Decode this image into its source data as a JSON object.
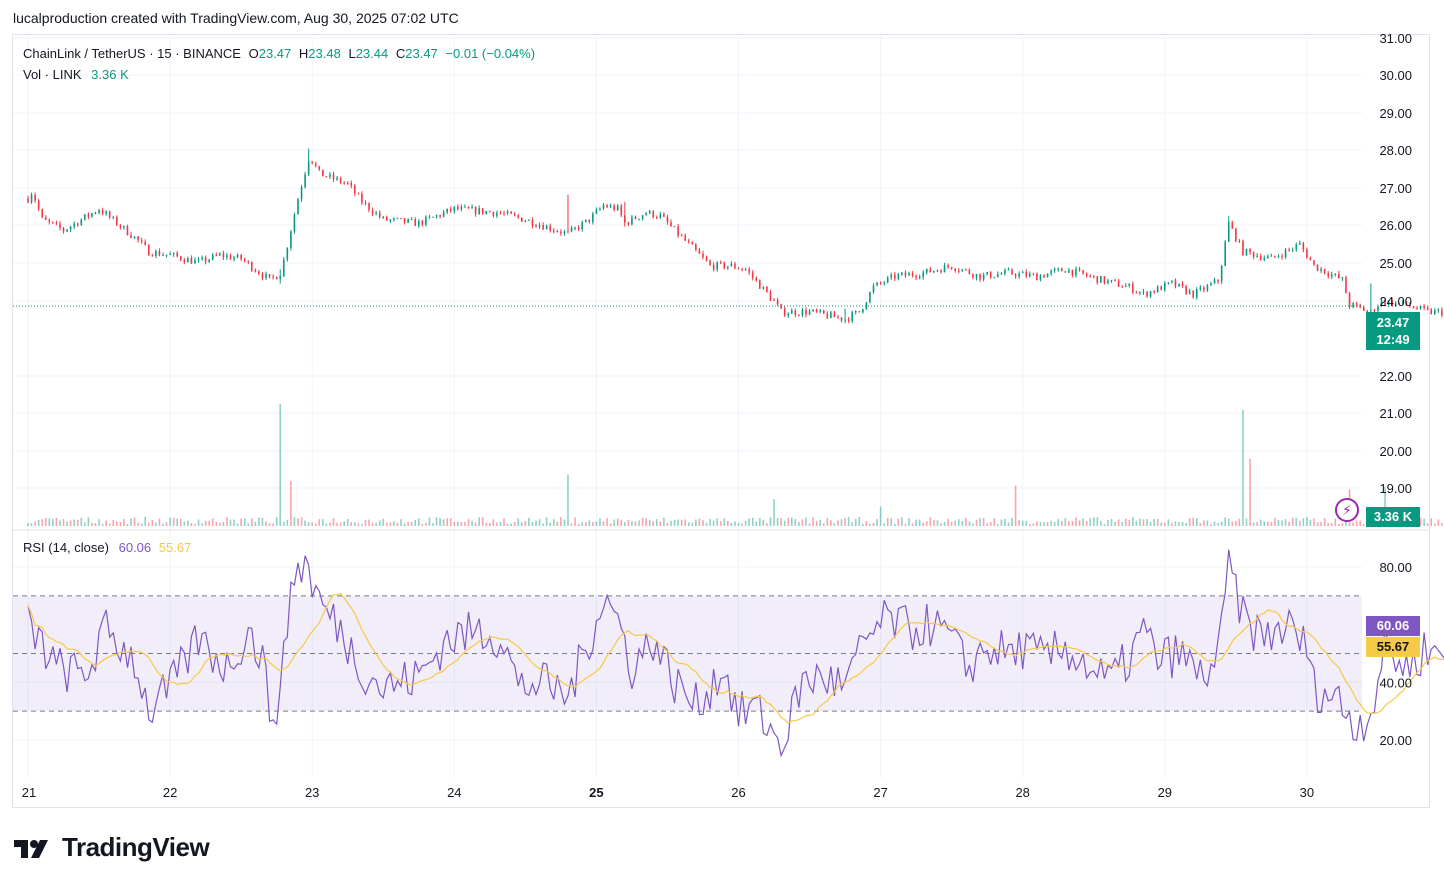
{
  "header": {
    "text": "lucalproduction created with TradingView.com, Aug 30, 2025 07:02 UTC"
  },
  "legend": {
    "symbol": "ChainLink / TetherUS · 15 · BINANCE",
    "o_label": "O",
    "o": "23.47",
    "h_label": "H",
    "h": "23.48",
    "l_label": "L",
    "l": "23.44",
    "c_label": "C",
    "c": "23.47",
    "change": "−0.01 (−0.04%)",
    "vol_label": "Vol · LINK",
    "vol": "3.36 K"
  },
  "rsi_legend": {
    "label": "RSI (14, close)",
    "value": "60.06",
    "ma": "55.67"
  },
  "badges": {
    "price": "23.47",
    "countdown": "12:49",
    "volume": "3.36 K",
    "rsi": "60.06",
    "rsi_ma": "55.67"
  },
  "brand": {
    "name": "TradingView",
    "logo_icon": "tradingview-logo-icon"
  },
  "colors": {
    "up": "#089981",
    "down": "#f23645",
    "rsi": "#7e57c2",
    "rsi_ma": "#f7c948",
    "band": "#7e57c2"
  },
  "chart_data": [
    {
      "type": "candlestick",
      "x_ticks": [
        "21",
        "22",
        "23",
        "24",
        "25",
        "26",
        "27",
        "28",
        "29",
        "30"
      ],
      "x_ticks_bold": [
        "25"
      ],
      "y_ticks": [
        "31.00",
        "30.00",
        "29.00",
        "28.00",
        "27.00",
        "26.00",
        "25.00",
        "24.00",
        "22.00",
        "21.00",
        "20.00",
        "19.00"
      ],
      "y_ticks_values": [
        31,
        30,
        29,
        28,
        27,
        26,
        25,
        24,
        22,
        21,
        20,
        19
      ],
      "ylim": [
        18.4,
        31.1
      ],
      "last_price": 23.47,
      "price_path": [
        [
          0,
          26.5
        ],
        [
          0.03,
          26.7
        ],
        [
          0.1,
          25.9
        ],
        [
          0.25,
          25.6
        ],
        [
          0.5,
          26.2
        ],
        [
          0.75,
          25.4
        ],
        [
          0.85,
          25.0
        ],
        [
          1.0,
          24.9
        ],
        [
          1.2,
          24.7
        ],
        [
          1.35,
          24.9
        ],
        [
          1.5,
          24.8
        ],
        [
          1.7,
          24.2
        ],
        [
          1.78,
          24.4
        ],
        [
          1.9,
          26.5
        ],
        [
          1.98,
          27.7
        ],
        [
          2.05,
          27.2
        ],
        [
          2.25,
          26.9
        ],
        [
          2.35,
          26.4
        ],
        [
          2.5,
          25.9
        ],
        [
          2.75,
          25.8
        ],
        [
          3.0,
          26.2
        ],
        [
          3.3,
          26.1
        ],
        [
          3.5,
          25.9
        ],
        [
          3.8,
          25.5
        ],
        [
          3.95,
          25.9
        ],
        [
          4.05,
          26.3
        ],
        [
          4.15,
          26.2
        ],
        [
          4.2,
          25.8
        ],
        [
          4.35,
          26.1
        ],
        [
          4.45,
          26.0
        ],
        [
          4.55,
          25.6
        ],
        [
          4.65,
          25.2
        ],
        [
          4.8,
          24.6
        ],
        [
          4.95,
          24.6
        ],
        [
          5.05,
          24.5
        ],
        [
          5.25,
          23.6
        ],
        [
          5.3,
          23.3
        ],
        [
          5.5,
          23.3
        ],
        [
          5.75,
          23.1
        ],
        [
          5.85,
          23.3
        ],
        [
          5.95,
          24.0
        ],
        [
          6.1,
          24.3
        ],
        [
          6.3,
          24.4
        ],
        [
          6.5,
          24.6
        ],
        [
          6.7,
          24.3
        ],
        [
          6.9,
          24.4
        ],
        [
          7.1,
          24.3
        ],
        [
          7.3,
          24.5
        ],
        [
          7.55,
          24.2
        ],
        [
          7.75,
          24.0
        ],
        [
          7.85,
          23.8
        ],
        [
          8.05,
          24.1
        ],
        [
          8.2,
          23.8
        ],
        [
          8.3,
          24.0
        ],
        [
          8.38,
          24.2
        ],
        [
          8.45,
          25.8
        ],
        [
          8.55,
          25.0
        ],
        [
          8.75,
          24.8
        ],
        [
          8.95,
          25.2
        ],
        [
          9.05,
          24.6
        ],
        [
          9.25,
          24.2
        ],
        [
          9.3,
          23.5
        ],
        [
          9.45,
          23.3
        ],
        [
          9.52,
          23.6
        ],
        [
          9.7,
          23.5
        ],
        [
          9.85,
          23.3
        ],
        [
          10.0,
          23.3
        ],
        [
          10.1,
          23.2
        ],
        [
          10.2,
          23.1
        ],
        [
          10.3,
          23.4
        ],
        [
          10.35,
          23.47
        ]
      ],
      "spikes": [
        [
          1.77,
          24.1,
          24.5
        ],
        [
          1.98,
          27.9,
          27.4
        ],
        [
          3.8,
          26.6,
          25.8
        ],
        [
          4.2,
          26.4,
          25.7
        ],
        [
          5.75,
          23.0,
          23.4
        ],
        [
          8.45,
          26.0,
          25.3
        ],
        [
          9.45,
          24.1,
          23.5
        ]
      ]
    },
    {
      "type": "bar",
      "name": "Vol · LINK",
      "spikes": [
        [
          1.77,
          1.0
        ],
        [
          1.85,
          0.37
        ],
        [
          3.8,
          0.42
        ],
        [
          5.25,
          0.22
        ],
        [
          6.0,
          0.16
        ],
        [
          6.95,
          0.33
        ],
        [
          8.55,
          0.95
        ],
        [
          8.6,
          0.55
        ],
        [
          9.3,
          0.3
        ],
        [
          9.55,
          0.32
        ]
      ]
    },
    {
      "type": "line",
      "name": "RSI (14, close)",
      "y_ticks": [
        "80.00",
        "40.00",
        "20.00"
      ],
      "y_ticks_values": [
        80,
        40,
        20
      ],
      "ylim": [
        10,
        88
      ],
      "bands": [
        70,
        50,
        30
      ],
      "last": 60.06,
      "last_ma": 55.67,
      "path": [
        [
          0,
          60
        ],
        [
          0.2,
          45
        ],
        [
          0.4,
          42
        ],
        [
          0.55,
          58
        ],
        [
          0.75,
          48
        ],
        [
          0.85,
          30
        ],
        [
          1.0,
          38
        ],
        [
          1.2,
          55
        ],
        [
          1.4,
          45
        ],
        [
          1.55,
          58
        ],
        [
          1.65,
          48
        ],
        [
          1.7,
          30
        ],
        [
          1.78,
          35
        ],
        [
          1.85,
          75
        ],
        [
          1.95,
          82
        ],
        [
          2.05,
          68
        ],
        [
          2.2,
          58
        ],
        [
          2.35,
          45
        ],
        [
          2.5,
          38
        ],
        [
          2.75,
          42
        ],
        [
          2.95,
          55
        ],
        [
          3.2,
          58
        ],
        [
          3.35,
          55
        ],
        [
          3.45,
          38
        ],
        [
          3.6,
          40
        ],
        [
          3.8,
          35
        ],
        [
          3.95,
          55
        ],
        [
          4.05,
          70
        ],
        [
          4.15,
          62
        ],
        [
          4.25,
          45
        ],
        [
          4.4,
          55
        ],
        [
          4.55,
          40
        ],
        [
          4.7,
          32
        ],
        [
          4.9,
          45
        ],
        [
          5.0,
          28
        ],
        [
          5.1,
          32
        ],
        [
          5.25,
          22
        ],
        [
          5.3,
          18
        ],
        [
          5.45,
          40
        ],
        [
          5.6,
          42
        ],
        [
          5.75,
          38
        ],
        [
          5.9,
          55
        ],
        [
          6.05,
          62
        ],
        [
          6.2,
          58
        ],
        [
          6.35,
          60
        ],
        [
          6.5,
          55
        ],
        [
          6.6,
          45
        ],
        [
          6.75,
          52
        ],
        [
          6.9,
          50
        ],
        [
          7.0,
          52
        ],
        [
          7.15,
          48
        ],
        [
          7.3,
          52
        ],
        [
          7.45,
          46
        ],
        [
          7.6,
          40
        ],
        [
          7.75,
          48
        ],
        [
          7.85,
          58
        ],
        [
          7.95,
          48
        ],
        [
          8.1,
          50
        ],
        [
          8.25,
          42
        ],
        [
          8.38,
          48
        ],
        [
          8.45,
          82
        ],
        [
          8.55,
          62
        ],
        [
          8.7,
          55
        ],
        [
          8.85,
          60
        ],
        [
          9.0,
          52
        ],
        [
          9.05,
          38
        ],
        [
          9.2,
          35
        ],
        [
          9.35,
          25
        ],
        [
          9.45,
          30
        ],
        [
          9.55,
          52
        ],
        [
          9.7,
          45
        ],
        [
          9.85,
          52
        ],
        [
          10.0,
          48
        ],
        [
          10.05,
          30
        ],
        [
          10.2,
          48
        ],
        [
          10.3,
          60
        ],
        [
          10.35,
          60.06
        ]
      ]
    }
  ]
}
